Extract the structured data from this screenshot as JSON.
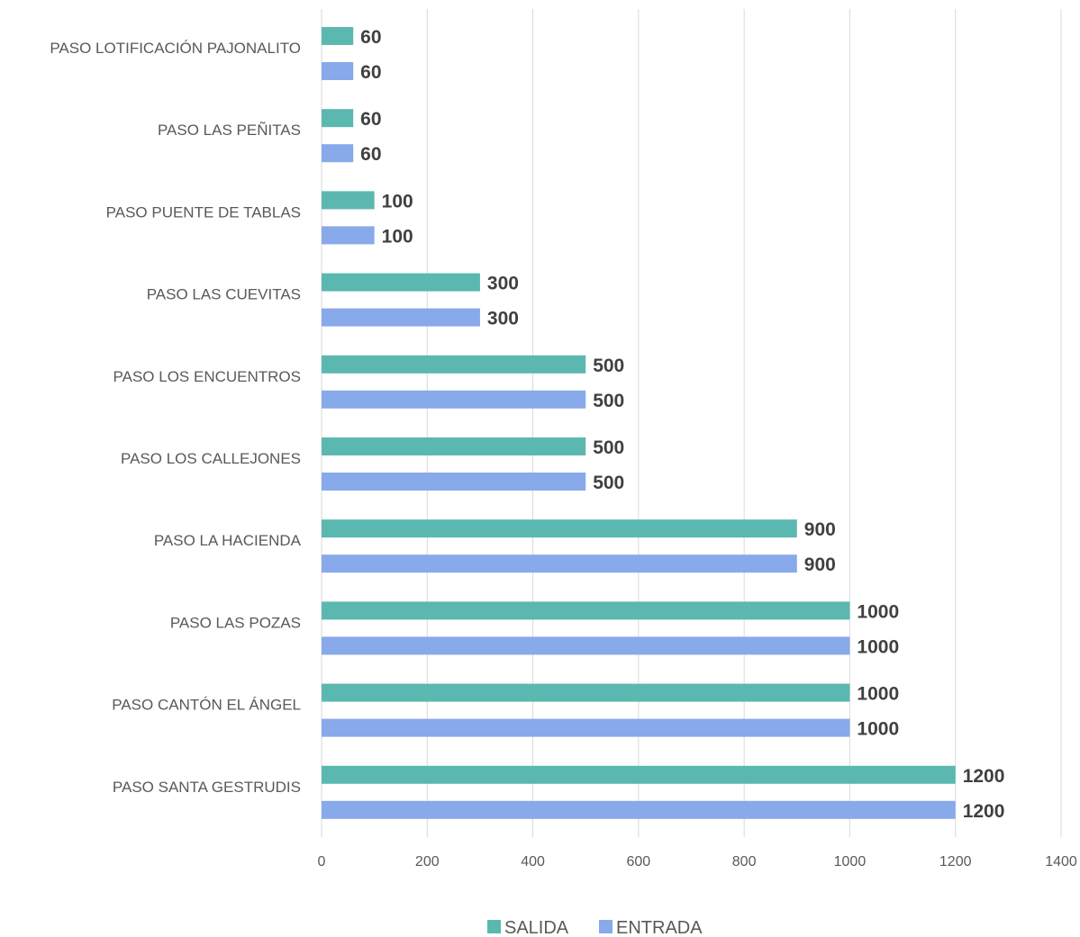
{
  "chart_data": {
    "type": "bar",
    "orientation": "horizontal",
    "categories": [
      "PASO LOTIFICACIÓN PAJONALITO",
      "PASO LAS PEÑITAS",
      "PASO PUENTE DE TABLAS",
      "PASO LAS CUEVITAS",
      "PASO  LOS ENCUENTROS",
      "PASO LOS CALLEJONES",
      "PASO LA HACIENDA",
      "PASO LAS POZAS",
      "PASO CANTÓN EL ÁNGEL",
      "PASO SANTA GESTRUDIS"
    ],
    "series": [
      {
        "name": "SALIDA",
        "color": "#5bb8b0",
        "values": [
          60,
          60,
          100,
          300,
          500,
          500,
          900,
          1000,
          1000,
          1200
        ]
      },
      {
        "name": "ENTRADA",
        "color": "#88a9ea",
        "values": [
          60,
          60,
          100,
          300,
          500,
          500,
          900,
          1000,
          1000,
          1200
        ]
      }
    ],
    "xlim": [
      0,
      1400
    ],
    "x_ticks": [
      0,
      200,
      400,
      600,
      800,
      1000,
      1200,
      1400
    ],
    "grid": "vertical",
    "legend": "bottom",
    "data_labels": true
  }
}
